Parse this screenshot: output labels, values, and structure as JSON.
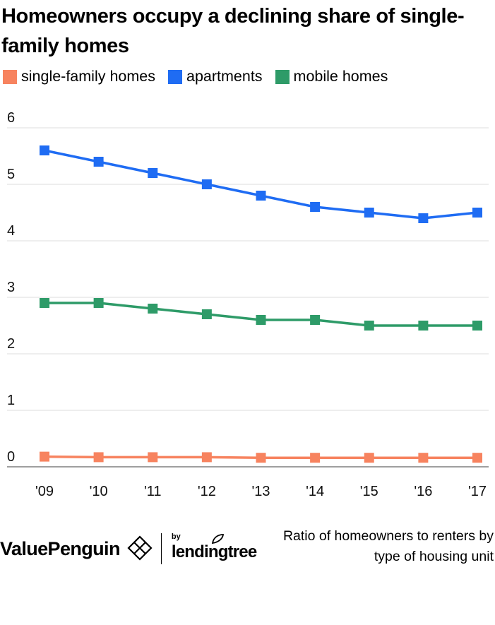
{
  "title": "Homeowners occupy a declining share of single-family homes",
  "legend": [
    {
      "label": "single-family homes",
      "color": "#f7835f"
    },
    {
      "label": "apartments",
      "color": "#1f6cf3"
    },
    {
      "label": "mobile homes",
      "color": "#2e9b68"
    }
  ],
  "footer": {
    "note": "Ratio of homeowners to renters by type of housing unit",
    "brand": "ValuePenguin",
    "by": "by",
    "partner": "lendingtree"
  },
  "chart_data": {
    "type": "line",
    "title": "Homeowners occupy a declining share of single-family homes",
    "subtitle": "",
    "xlabel": "",
    "ylabel": "",
    "categories": [
      "'09",
      "'10",
      "'11",
      "'12",
      "'13",
      "'14",
      "'15",
      "'16",
      "'17"
    ],
    "ylim": [
      0,
      6
    ],
    "yticks": [
      0,
      1,
      2,
      3,
      4,
      5,
      6
    ],
    "grid": true,
    "legend_position": "top-left",
    "series": [
      {
        "name": "single-family homes",
        "color": "#f7835f",
        "values": [
          0.18,
          0.17,
          0.17,
          0.17,
          0.16,
          0.16,
          0.16,
          0.16,
          0.16
        ]
      },
      {
        "name": "apartments",
        "color": "#1f6cf3",
        "values": [
          5.6,
          5.4,
          5.2,
          5.0,
          4.8,
          4.6,
          4.5,
          4.4,
          4.5
        ]
      },
      {
        "name": "mobile homes",
        "color": "#2e9b68",
        "values": [
          2.9,
          2.9,
          2.8,
          2.7,
          2.6,
          2.6,
          2.5,
          2.5,
          2.5
        ]
      }
    ]
  }
}
